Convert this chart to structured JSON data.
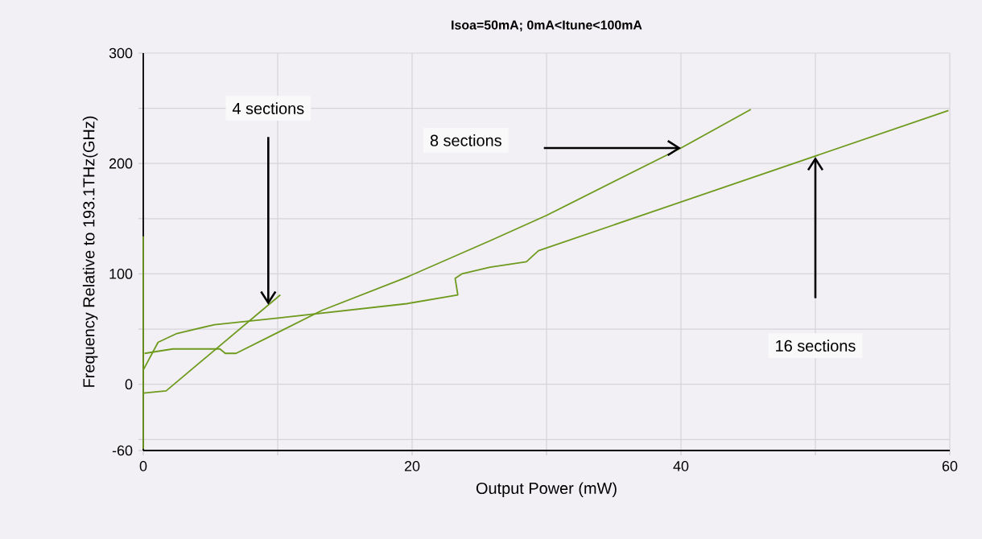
{
  "chart_data": {
    "type": "line",
    "title": "Isoa=50mA; 0mA<Itune<100mA",
    "xlabel": "Output Power (mW)",
    "ylabel": "Frequency Relative to 193.1THz(GHz)",
    "series": [
      {
        "color": "#6e9a1e",
        "x": [
          0,
          0,
          0,
          1.7,
          10.2
        ],
        "values": [
          134,
          -58,
          -8,
          -6,
          81
        ]
      },
      {
        "color": "#6e9a1e",
        "x": [
          0.1,
          2.2,
          5.7,
          6.1,
          6.9,
          9.7,
          13.3,
          19.6,
          25.8,
          30.0,
          40.0,
          45.2
        ],
        "values": [
          28,
          32,
          32,
          28,
          28,
          45,
          67,
          97,
          130,
          153,
          214,
          249
        ]
      },
      {
        "color": "#6e9a1e",
        "x": [
          0.0,
          1.1,
          2.5,
          5.3,
          10.0,
          19.6,
          23.4,
          23.2,
          23.7,
          25.8,
          28.5,
          29.4,
          59.9
        ],
        "values": [
          13,
          38,
          46,
          54,
          60,
          73,
          81,
          96,
          100,
          106,
          111,
          121,
          248
        ]
      }
    ],
    "xlim": [
      0,
      60
    ],
    "xticks": [
      0,
      {
        "value": 10,
        "label": null
      },
      20,
      {
        "value": 30,
        "label": null
      },
      40,
      {
        "value": 50,
        "label": null
      },
      60
    ],
    "ylim": [
      -60,
      300
    ],
    "yticks": [
      -60,
      {
        "value": -50,
        "label": null
      },
      0,
      {
        "value": 50,
        "label": null
      },
      100,
      {
        "value": 150,
        "label": null
      },
      200,
      {
        "value": 250,
        "label": null
      },
      300
    ],
    "grid": true,
    "annotations": [
      "4 sections",
      "8 sections",
      "16 sections"
    ]
  }
}
